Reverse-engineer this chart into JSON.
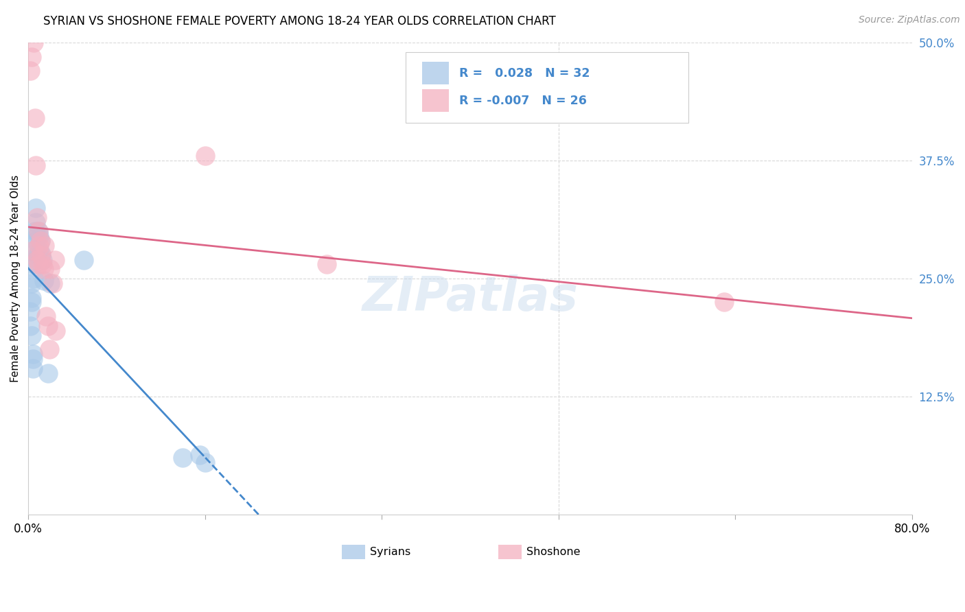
{
  "title": "SYRIAN VS SHOSHONE FEMALE POVERTY AMONG 18-24 YEAR OLDS CORRELATION CHART",
  "source": "Source: ZipAtlas.com",
  "ylabel": "Female Poverty Among 18-24 Year Olds",
  "xlim": [
    0.0,
    0.8
  ],
  "ylim": [
    0.0,
    0.5
  ],
  "background_color": "#ffffff",
  "grid_color": "#d8d8d8",
  "blue_scatter_color": "#a8c8e8",
  "pink_scatter_color": "#f4b0c0",
  "blue_line_color": "#4488cc",
  "pink_line_color": "#dd6688",
  "right_axis_color": "#4488cc",
  "syrians_R": "0.028",
  "syrians_N": "32",
  "shoshone_R": "-0.007",
  "shoshone_N": "26",
  "watermark": "ZIPatlas",
  "syrians_x": [
    0.002,
    0.002,
    0.003,
    0.003,
    0.003,
    0.003,
    0.004,
    0.004,
    0.004,
    0.005,
    0.005,
    0.005,
    0.006,
    0.006,
    0.007,
    0.007,
    0.007,
    0.008,
    0.008,
    0.009,
    0.01,
    0.01,
    0.011,
    0.012,
    0.013,
    0.014,
    0.018,
    0.02,
    0.05,
    0.14,
    0.155,
    0.16
  ],
  "syrians_y": [
    0.2,
    0.215,
    0.225,
    0.23,
    0.245,
    0.19,
    0.17,
    0.165,
    0.155,
    0.28,
    0.265,
    0.25,
    0.3,
    0.27,
    0.325,
    0.31,
    0.29,
    0.295,
    0.275,
    0.3,
    0.295,
    0.28,
    0.29,
    0.276,
    0.27,
    0.248,
    0.15,
    0.245,
    0.27,
    0.06,
    0.063,
    0.055
  ],
  "shoshone_x": [
    0.002,
    0.003,
    0.005,
    0.006,
    0.007,
    0.008,
    0.009,
    0.01,
    0.011,
    0.012,
    0.013,
    0.014,
    0.015,
    0.016,
    0.018,
    0.019,
    0.02,
    0.022,
    0.024,
    0.025,
    0.16,
    0.27,
    0.63,
    0.004,
    0.008,
    0.009
  ],
  "shoshone_y": [
    0.47,
    0.485,
    0.5,
    0.42,
    0.37,
    0.315,
    0.3,
    0.285,
    0.29,
    0.275,
    0.265,
    0.26,
    0.285,
    0.21,
    0.2,
    0.175,
    0.26,
    0.245,
    0.27,
    0.195,
    0.38,
    0.265,
    0.225,
    0.28,
    0.27,
    0.265
  ]
}
